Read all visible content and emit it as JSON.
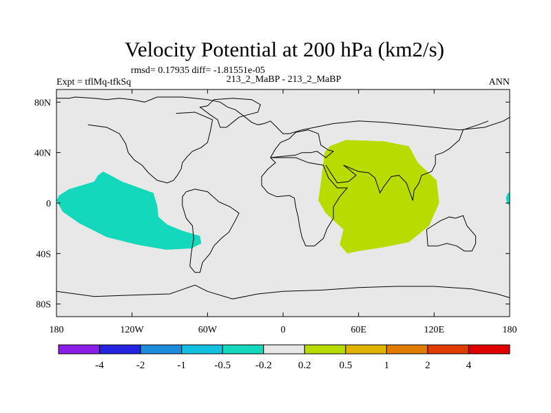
{
  "chart_data": {
    "type": "contour-map",
    "title": "Velocity Potential at 200 hPa (km2/s)",
    "stats": "rmsd= 0.17935 diff= -1.81551e-05",
    "left_label": "Expt = tflMq-tfkSq",
    "center_label": "213_2_MaBP - 213_2_MaBP",
    "right_label": "ANN",
    "xlim": [
      -180,
      180
    ],
    "ylim": [
      -90,
      90
    ],
    "x_ticks": [
      {
        "value": -180,
        "label": "180"
      },
      {
        "value": -120,
        "label": "120W"
      },
      {
        "value": -60,
        "label": "60W"
      },
      {
        "value": 0,
        "label": "0"
      },
      {
        "value": 60,
        "label": "60E"
      },
      {
        "value": 120,
        "label": "120E"
      },
      {
        "value": 180,
        "label": "180"
      }
    ],
    "y_ticks": [
      {
        "value": 80,
        "label": "80N"
      },
      {
        "value": 40,
        "label": "40N"
      },
      {
        "value": 0,
        "label": "0"
      },
      {
        "value": -40,
        "label": "40S"
      },
      {
        "value": -80,
        "label": "80S"
      }
    ],
    "background_color": "#e8e8e8",
    "colorbar": {
      "levels": [
        "-4",
        "-2",
        "-1",
        "-0.5",
        "-0.2",
        "0.2",
        "0.5",
        "1",
        "2",
        "4"
      ],
      "colors": [
        "#8a1ee6",
        "#2424e0",
        "#1e8cdc",
        "#14c0e0",
        "#14d8bc",
        "#e8e8e8",
        "#b8dc00",
        "#e0b400",
        "#e07c00",
        "#e03c00",
        "#e00000"
      ]
    },
    "regions": [
      {
        "name": "negative-anomaly-pacific",
        "range": "-0.5 to -0.2",
        "color": "#14d8bc",
        "polygon": [
          [
            -178,
            6
          ],
          [
            -170,
            11
          ],
          [
            -160,
            14
          ],
          [
            -150,
            17
          ],
          [
            -147,
            22
          ],
          [
            -143,
            25
          ],
          [
            -137,
            22
          ],
          [
            -128,
            17
          ],
          [
            -103,
            8
          ],
          [
            -100,
            -2
          ],
          [
            -99,
            -11
          ],
          [
            -92,
            -17
          ],
          [
            -80,
            -22
          ],
          [
            -66,
            -26
          ],
          [
            -65,
            -32
          ],
          [
            -73,
            -36
          ],
          [
            -93,
            -37
          ],
          [
            -116,
            -33
          ],
          [
            -140,
            -27
          ],
          [
            -162,
            -16
          ],
          [
            -175,
            -7
          ],
          [
            -180,
            2
          ]
        ]
      },
      {
        "name": "negative-anomaly-east-edge",
        "range": "-0.5 to -0.2",
        "color": "#14d8bc",
        "polygon": [
          [
            180,
            9
          ],
          [
            178,
            7
          ],
          [
            177,
            4
          ],
          [
            178,
            0
          ],
          [
            180,
            -2
          ]
        ]
      },
      {
        "name": "positive-anomaly-indian-ocean",
        "range": "0.2 to 0.5",
        "color": "#b8dc00",
        "polygon": [
          [
            37,
            45
          ],
          [
            50,
            50
          ],
          [
            80,
            49
          ],
          [
            100,
            45
          ],
          [
            107,
            32
          ],
          [
            122,
            18
          ],
          [
            124,
            0
          ],
          [
            116,
            -18
          ],
          [
            100,
            -31
          ],
          [
            80,
            -35
          ],
          [
            60,
            -38
          ],
          [
            51,
            -40
          ],
          [
            45,
            -33
          ],
          [
            48,
            -21
          ],
          [
            34,
            -8
          ],
          [
            28,
            2
          ],
          [
            30,
            16
          ],
          [
            33,
            40
          ]
        ]
      }
    ],
    "coastlines": [
      [
        [
          -180,
          83
        ],
        [
          -170,
          83
        ],
        [
          -165,
          84
        ],
        [
          -150,
          83
        ],
        [
          -140,
          82
        ],
        [
          -130,
          83
        ],
        [
          -120,
          82
        ],
        [
          -115,
          81
        ],
        [
          -110,
          80
        ],
        [
          -100,
          84
        ],
        [
          -80,
          84
        ],
        [
          -70,
          83
        ],
        [
          -60,
          82
        ],
        [
          -50,
          80
        ],
        [
          -44,
          76
        ],
        [
          -38,
          74
        ],
        [
          -30,
          68
        ],
        [
          -25,
          64
        ],
        [
          -20,
          62
        ],
        [
          -15,
          63
        ],
        [
          -10,
          65
        ],
        [
          -5,
          60
        ],
        [
          0,
          55
        ],
        [
          5,
          55
        ],
        [
          15,
          58
        ],
        [
          25,
          60
        ],
        [
          40,
          63
        ],
        [
          60,
          65
        ],
        [
          80,
          64
        ],
        [
          100,
          62
        ],
        [
          120,
          60
        ],
        [
          140,
          58
        ],
        [
          160,
          60
        ],
        [
          175,
          65
        ],
        [
          180,
          68
        ]
      ],
      [
        [
          -85,
          71
        ],
        [
          -70,
          72
        ],
        [
          -56,
          66
        ],
        [
          -58,
          56
        ],
        [
          -60,
          48
        ],
        [
          -65,
          44
        ],
        [
          -72,
          41
        ],
        [
          -76,
          37
        ],
        [
          -80,
          32
        ],
        [
          -81,
          27
        ],
        [
          -84,
          22
        ],
        [
          -87,
          18
        ],
        [
          -92,
          16
        ],
        [
          -100,
          18
        ],
        [
          -107,
          24
        ],
        [
          -112,
          30
        ],
        [
          -118,
          34
        ],
        [
          -123,
          40
        ],
        [
          -125,
          47
        ],
        [
          -130,
          55
        ],
        [
          -140,
          60
        ],
        [
          -155,
          62
        ]
      ],
      [
        [
          -77,
          9
        ],
        [
          -80,
          5
        ],
        [
          -80,
          -2
        ],
        [
          -77,
          -12
        ],
        [
          -72,
          -18
        ],
        [
          -71,
          -28
        ],
        [
          -73,
          -40
        ],
        [
          -74,
          -50
        ],
        [
          -70,
          -55
        ],
        [
          -66,
          -55
        ],
        [
          -64,
          -47
        ],
        [
          -58,
          -40
        ],
        [
          -55,
          -34
        ],
        [
          -49,
          -28
        ],
        [
          -43,
          -23
        ],
        [
          -38,
          -14
        ],
        [
          -35,
          -8
        ],
        [
          -42,
          -3
        ],
        [
          -51,
          1
        ],
        [
          -60,
          9
        ],
        [
          -70,
          11
        ],
        [
          -77,
          9
        ]
      ],
      [
        [
          -10,
          36
        ],
        [
          -6,
          32
        ],
        [
          -12,
          27
        ],
        [
          -17,
          21
        ],
        [
          -17,
          14
        ],
        [
          -12,
          8
        ],
        [
          -5,
          5
        ],
        [
          5,
          6
        ],
        [
          9,
          4
        ],
        [
          10,
          -3
        ],
        [
          12,
          -11
        ],
        [
          13,
          -18
        ],
        [
          15,
          -27
        ],
        [
          18,
          -34
        ],
        [
          25,
          -34
        ],
        [
          32,
          -28
        ],
        [
          35,
          -20
        ],
        [
          40,
          -12
        ],
        [
          40,
          -3
        ],
        [
          45,
          5
        ],
        [
          51,
          12
        ],
        [
          43,
          12
        ],
        [
          36,
          20
        ],
        [
          32,
          30
        ],
        [
          20,
          32
        ],
        [
          10,
          36
        ],
        [
          0,
          36
        ],
        [
          -10,
          36
        ]
      ],
      [
        [
          -10,
          36
        ],
        [
          -6,
          43
        ],
        [
          -2,
          48
        ],
        [
          5,
          51
        ],
        [
          10,
          56
        ],
        [
          20,
          58
        ],
        [
          28,
          55
        ],
        [
          30,
          46
        ],
        [
          36,
          42
        ],
        [
          40,
          41
        ],
        [
          34,
          36
        ],
        [
          27,
          41
        ],
        [
          22,
          40
        ],
        [
          15,
          40
        ],
        [
          10,
          38
        ],
        [
          -10,
          36
        ]
      ],
      [
        [
          34,
          30
        ],
        [
          43,
          16
        ],
        [
          52,
          17
        ],
        [
          58,
          22
        ],
        [
          52,
          27
        ],
        [
          48,
          30
        ],
        [
          60,
          25
        ],
        [
          68,
          24
        ],
        [
          73,
          20
        ],
        [
          77,
          8
        ],
        [
          80,
          13
        ],
        [
          86,
          21
        ],
        [
          92,
          22
        ],
        [
          98,
          16
        ],
        [
          103,
          2
        ],
        [
          104,
          10
        ],
        [
          108,
          16
        ],
        [
          110,
          22
        ],
        [
          118,
          25
        ],
        [
          121,
          31
        ],
        [
          121,
          38
        ],
        [
          127,
          40
        ],
        [
          132,
          43
        ],
        [
          140,
          50
        ],
        [
          143,
          58
        ],
        [
          155,
          62
        ],
        [
          163,
          65
        ]
      ],
      [
        [
          114,
          -21
        ],
        [
          125,
          -14
        ],
        [
          132,
          -11
        ],
        [
          137,
          -12
        ],
        [
          143,
          -10
        ],
        [
          146,
          -18
        ],
        [
          153,
          -26
        ],
        [
          153,
          -32
        ],
        [
          150,
          -38
        ],
        [
          144,
          -38
        ],
        [
          138,
          -34
        ],
        [
          130,
          -32
        ],
        [
          123,
          -34
        ],
        [
          115,
          -34
        ],
        [
          114,
          -21
        ]
      ],
      [
        [
          -180,
          -70
        ],
        [
          -150,
          -74
        ],
        [
          -120,
          -73
        ],
        [
          -90,
          -72
        ],
        [
          -70,
          -65
        ],
        [
          -60,
          -70
        ],
        [
          -40,
          -76
        ],
        [
          -20,
          -72
        ],
        [
          0,
          -70
        ],
        [
          30,
          -69
        ],
        [
          60,
          -67
        ],
        [
          90,
          -66
        ],
        [
          120,
          -66
        ],
        [
          150,
          -68
        ],
        [
          170,
          -72
        ],
        [
          180,
          -75
        ]
      ],
      [
        [
          -50,
          60
        ],
        [
          -45,
          60
        ],
        [
          -40,
          64
        ],
        [
          -35,
          68
        ],
        [
          -28,
          70
        ],
        [
          -20,
          72
        ],
        [
          -18,
          78
        ],
        [
          -25,
          82
        ],
        [
          -40,
          83
        ],
        [
          -55,
          82
        ],
        [
          -60,
          77
        ],
        [
          -66,
          76
        ],
        [
          -58,
          70
        ],
        [
          -52,
          66
        ],
        [
          -50,
          60
        ]
      ]
    ]
  }
}
